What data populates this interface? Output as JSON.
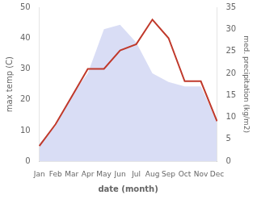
{
  "chart_data": {
    "type": "line",
    "xlabel": "date (month)",
    "ylabel": "max temp (C)",
    "y2label": "med. precipitation (kg/m2)",
    "categories": [
      "Jan",
      "Feb",
      "Mar",
      "Apr",
      "May",
      "Jun",
      "Jul",
      "Aug",
      "Sep",
      "Oct",
      "Nov",
      "Dec"
    ],
    "series": [
      {
        "type": "area",
        "axis": "y2",
        "color": "#aab4e8",
        "values": [
          4,
          8,
          15,
          20,
          30,
          31,
          27,
          20,
          18,
          17,
          17,
          9
        ]
      },
      {
        "type": "line",
        "color": "#c0392b",
        "values": [
          5,
          12,
          21,
          30,
          30,
          36,
          38,
          46,
          40,
          26,
          26,
          13
        ]
      }
    ],
    "ylim": [
      0,
      50
    ],
    "yticks": [
      0,
      10,
      20,
      30,
      40,
      50
    ],
    "y2lim": [
      0,
      35
    ],
    "y2ticks": [
      0,
      5,
      10,
      15,
      20,
      25,
      30,
      35
    ],
    "grid": false
  }
}
